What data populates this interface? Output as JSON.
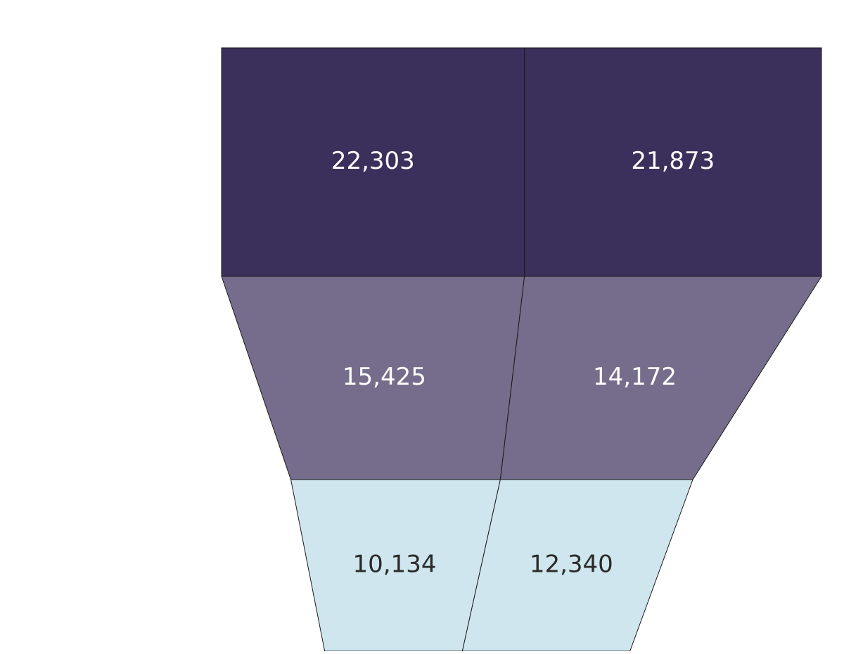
{
  "chart_data": {
    "type": "funnel",
    "stages": [
      {
        "label": "",
        "values": [
          22303,
          21873
        ],
        "value_labels": [
          "22,303",
          "21,873"
        ],
        "color": "#3b2f5b",
        "text_color": "#ffffff"
      },
      {
        "label": "",
        "values": [
          15425,
          14172
        ],
        "value_labels": [
          "15,425",
          "14,172"
        ],
        "color": "#756d8b",
        "text_color": "#ffffff"
      },
      {
        "label": "",
        "values": [
          10134,
          12340
        ],
        "value_labels": [
          "10,134",
          "12,340"
        ],
        "color": "#d0e6ee",
        "text_color": "#2a2a2a"
      }
    ],
    "series": [
      {
        "name": ""
      },
      {
        "name": ""
      }
    ],
    "title": "",
    "divider_color": "#1a1a1a",
    "grid": false
  }
}
